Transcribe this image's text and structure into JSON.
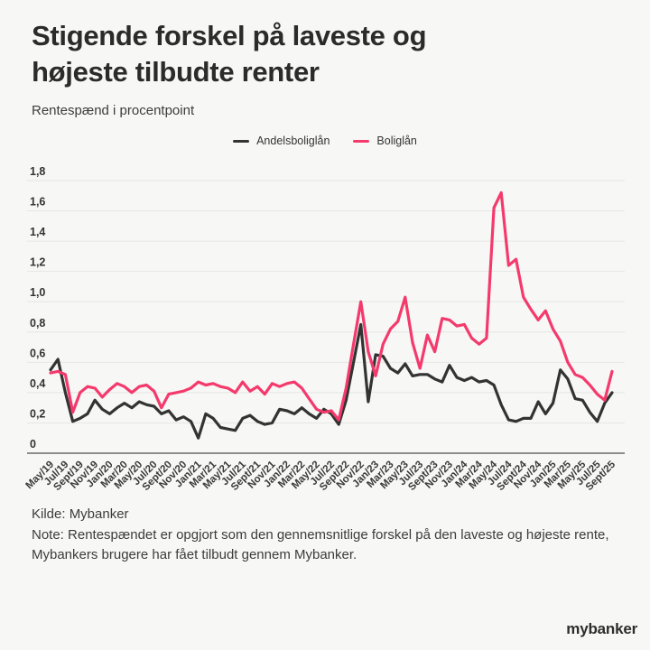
{
  "header": {
    "title_line1": "Stigende forskel på laveste og",
    "title_line2": "højeste tilbudte renter",
    "subtitle": "Rentespænd i procentpoint"
  },
  "legend": [
    {
      "label": "Andelsboliglån",
      "color": "#333333"
    },
    {
      "label": "Boliglån",
      "color": "#f43a6c"
    }
  ],
  "footer": {
    "source": "Kilde: Mybanker",
    "note_line1": "Note: Rentespændet er opgjort som den gennemsnitlige forskel på den laveste og højeste rente,",
    "note_line2": "Mybankers brugere har fået tilbudt gennem Mybanker."
  },
  "logo": "mybanker",
  "chart_data": {
    "type": "line",
    "title": "Stigende forskel på laveste og højeste tilbudte renter",
    "subtitle": "Rentespænd i procentpoint",
    "ylabel": "Rentespænd i procentpoint",
    "ylim": [
      0,
      1.8
    ],
    "grid": true,
    "legend_position": "top",
    "y_tick_labels": [
      "0",
      "0,2",
      "0,4",
      "0,6",
      "0,8",
      "1,0",
      "1,2",
      "1,4",
      "1,6",
      "1,8"
    ],
    "x_tick_labels": [
      "May/19",
      "Jul/19",
      "Sept/19",
      "Nov/19",
      "Jan/20",
      "Mar/20",
      "May/20",
      "Jul/20",
      "Sept/20",
      "Nov/20",
      "Jan/21",
      "Mar/21",
      "May/21",
      "Jul/21",
      "Sept/21",
      "Nov/21",
      "Jan/22",
      "Mar/22",
      "May/22",
      "Jul/22",
      "Sept/22",
      "Nov/22",
      "Jan/23",
      "Mar/23",
      "May/23",
      "Jul/23",
      "Sept/23",
      "Nov/23",
      "Jan/24",
      "Mar/24",
      "May/24",
      "Jul/24",
      "Sept/24",
      "Nov/24",
      "Jan/25",
      "Mar/25",
      "May/25",
      "Jul/25",
      "Sept/25"
    ],
    "x": [
      "May/19",
      "Jun/19",
      "Jul/19",
      "Aug/19",
      "Sept/19",
      "Oct/19",
      "Nov/19",
      "Dec/19",
      "Jan/20",
      "Feb/20",
      "Mar/20",
      "Apr/20",
      "May/20",
      "Jun/20",
      "Jul/20",
      "Aug/20",
      "Sept/20",
      "Oct/20",
      "Nov/20",
      "Dec/20",
      "Jan/21",
      "Feb/21",
      "Mar/21",
      "Apr/21",
      "May/21",
      "Jun/21",
      "Jul/21",
      "Aug/21",
      "Sept/21",
      "Oct/21",
      "Nov/21",
      "Dec/21",
      "Jan/22",
      "Feb/22",
      "Mar/22",
      "Apr/22",
      "May/22",
      "Jun/22",
      "Jul/22",
      "Aug/22",
      "Sept/22",
      "Oct/22",
      "Nov/22",
      "Dec/22",
      "Jan/23",
      "Feb/23",
      "Mar/23",
      "Apr/23",
      "May/23",
      "Jun/23",
      "Jul/23",
      "Aug/23",
      "Sept/23",
      "Oct/23",
      "Nov/23",
      "Dec/23",
      "Jan/24",
      "Feb/24",
      "Mar/24",
      "Apr/24",
      "May/24",
      "Jun/24",
      "Jul/24",
      "Aug/24",
      "Sept/24",
      "Oct/24",
      "Nov/24",
      "Dec/24",
      "Jan/25",
      "Feb/25",
      "Mar/25",
      "Apr/25",
      "May/25",
      "Jun/25",
      "Jul/25",
      "Aug/25",
      "Sept/25"
    ],
    "series": [
      {
        "name": "Andelsboliglån",
        "color": "#333333",
        "values": [
          0.55,
          0.62,
          0.4,
          0.21,
          0.23,
          0.26,
          0.35,
          0.29,
          0.26,
          0.3,
          0.33,
          0.3,
          0.34,
          0.32,
          0.31,
          0.26,
          0.28,
          0.22,
          0.24,
          0.21,
          0.1,
          0.26,
          0.23,
          0.17,
          0.16,
          0.15,
          0.23,
          0.25,
          0.21,
          0.19,
          0.2,
          0.29,
          0.28,
          0.26,
          0.3,
          0.26,
          0.23,
          0.29,
          0.26,
          0.19,
          0.35,
          0.6,
          0.85,
          0.34,
          0.65,
          0.64,
          0.56,
          0.53,
          0.59,
          0.51,
          0.52,
          0.52,
          0.49,
          0.47,
          0.58,
          0.5,
          0.48,
          0.5,
          0.47,
          0.48,
          0.45,
          0.32,
          0.22,
          0.21,
          0.23,
          0.23,
          0.34,
          0.26,
          0.33,
          0.55,
          0.49,
          0.36,
          0.35,
          0.27,
          0.21,
          0.33,
          0.4
        ]
      },
      {
        "name": "Boliglån",
        "color": "#f43a6c",
        "values": [
          0.53,
          0.54,
          0.52,
          0.27,
          0.4,
          0.44,
          0.43,
          0.37,
          0.42,
          0.46,
          0.44,
          0.4,
          0.44,
          0.45,
          0.41,
          0.3,
          0.39,
          0.4,
          0.41,
          0.43,
          0.47,
          0.45,
          0.46,
          0.44,
          0.43,
          0.4,
          0.47,
          0.41,
          0.44,
          0.39,
          0.46,
          0.44,
          0.46,
          0.47,
          0.43,
          0.36,
          0.29,
          0.27,
          0.28,
          0.22,
          0.43,
          0.72,
          1.0,
          0.67,
          0.51,
          0.72,
          0.82,
          0.87,
          1.03,
          0.73,
          0.56,
          0.78,
          0.67,
          0.89,
          0.88,
          0.84,
          0.85,
          0.76,
          0.72,
          0.76,
          1.62,
          1.72,
          1.24,
          1.28,
          1.03,
          0.95,
          0.88,
          0.94,
          0.82,
          0.74,
          0.6,
          0.52,
          0.5,
          0.45,
          0.39,
          0.35,
          0.54
        ]
      }
    ]
  }
}
